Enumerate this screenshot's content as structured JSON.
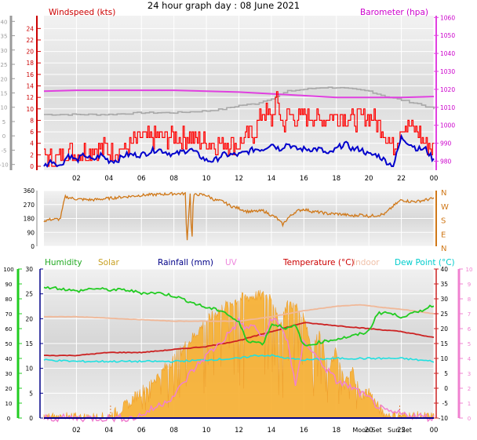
{
  "title": "24 hour graph day : 08 June 2021",
  "colors": {
    "wind_gust": "#ff0000",
    "wind_avg": "#0000cc",
    "barometer": "#e040e0",
    "baro_prev": "#a8a8a8",
    "wind_dir": "#d07818",
    "humidity": "#22cc22",
    "solar": "#f8b030",
    "rainfall": "#000088",
    "uv": "#f080d0",
    "temperature": "#cc2222",
    "indoor": "#f0b898",
    "dew_point": "#20e0e0",
    "left_axis_gray": "#9a9a9a",
    "plot_bg": "#e6e6e6",
    "grid": "#ffffff"
  },
  "chart_data": [
    {
      "type": "line",
      "name": "wind-barometer",
      "legend": [
        {
          "label": "Windspeed (kts)",
          "color": "#cc0000"
        },
        {
          "label": "Barometer (hpa)",
          "color": "#cc00cc"
        }
      ],
      "x_tick_labels": [
        "02",
        "04",
        "06",
        "08",
        "10",
        "12",
        "14",
        "16",
        "18",
        "20",
        "22",
        "00"
      ],
      "xlim": [
        0,
        24
      ],
      "wind_axis": {
        "ticks": [
          0,
          2,
          4,
          6,
          8,
          10,
          12,
          14,
          16,
          18,
          20,
          22,
          24
        ],
        "ylim": [
          0,
          25
        ]
      },
      "baro_axis": {
        "ticks": [
          980,
          990,
          1000,
          1010,
          1020,
          1030,
          1040,
          1050,
          1060
        ],
        "ylim": [
          975,
          1061
        ]
      },
      "left_gray_axis": {
        "ticks": [
          -10,
          -5,
          0,
          5,
          10,
          15,
          20,
          25,
          30,
          35,
          40
        ],
        "ylim": [
          -12,
          42
        ]
      },
      "series": [
        {
          "name": "Windspeed (kts)",
          "role": "gust",
          "unit": "kts",
          "x": [
            0.0,
            0.5,
            1.0,
            1.5,
            2.0,
            3.0,
            4.0,
            5.0,
            6.0,
            7.0,
            8.0,
            9.0,
            10.0,
            11.0,
            12.0,
            13.0,
            13.5,
            14.0,
            14.3,
            14.7,
            15.0,
            15.5,
            16.0,
            17.0,
            18.0,
            19.0,
            20.0,
            21.0,
            21.5,
            22.0,
            22.5,
            23.0,
            23.5,
            24.0
          ],
          "y": [
            2,
            1,
            2,
            3,
            2,
            3,
            3,
            3,
            5,
            5,
            5,
            5,
            4,
            4,
            4,
            6,
            10,
            8,
            12,
            7,
            9,
            8,
            9,
            8,
            9,
            8,
            9,
            6,
            3,
            7,
            7,
            6,
            4,
            3
          ]
        },
        {
          "name": "Wind average",
          "role": "average",
          "unit": "kts",
          "x": [
            0.0,
            0.5,
            1.0,
            1.5,
            2.0,
            2.5,
            3.0,
            3.5,
            4.0,
            4.5,
            5.0,
            6.0,
            7.0,
            8.0,
            9.0,
            9.5,
            10.0,
            10.5,
            11.0,
            12.0,
            13.0,
            13.5,
            14.0,
            14.5,
            15.0,
            15.5,
            16.0,
            17.0,
            17.5,
            18.0,
            18.5,
            19.0,
            19.5,
            20.0,
            20.5,
            21.0,
            21.5,
            22.0,
            22.5,
            23.0,
            23.5,
            24.0
          ],
          "y": [
            0,
            1,
            0,
            2,
            1,
            2,
            1,
            2,
            1,
            1,
            2,
            2,
            3,
            2,
            3,
            2,
            1,
            1,
            2,
            2,
            3,
            3,
            4,
            3,
            4,
            3,
            3,
            3,
            2,
            3,
            4,
            3,
            3,
            2,
            2,
            1,
            0,
            5,
            4,
            3,
            3,
            1
          ]
        },
        {
          "name": "Barometer (hpa)",
          "unit": "hpa",
          "x": [
            0,
            2,
            4,
            6,
            8,
            10,
            12,
            14,
            16,
            18,
            20,
            22,
            24
          ],
          "y": [
            1019,
            1019.5,
            1019.5,
            1019.5,
            1019.5,
            1019,
            1018.5,
            1017.5,
            1016.5,
            1015.5,
            1015.5,
            1015.5,
            1016
          ]
        },
        {
          "name": "Previous barometer",
          "role": "previous",
          "unit": "hpa",
          "x": [
            0,
            2,
            4,
            6,
            8,
            10,
            11,
            12,
            13,
            14,
            15,
            16,
            17,
            18,
            19,
            20,
            21,
            22,
            23,
            24
          ],
          "y": [
            1006,
            1006,
            1006,
            1007,
            1007,
            1008,
            1009,
            1011,
            1012,
            1015,
            1019,
            1020,
            1021,
            1021,
            1020,
            1019,
            1016,
            1014,
            1012,
            1009
          ]
        }
      ]
    },
    {
      "type": "line",
      "name": "wind-direction",
      "x_tick_labels": [
        "02",
        "04",
        "06",
        "08",
        "10",
        "12",
        "14",
        "16",
        "18",
        "20",
        "22",
        "00"
      ],
      "xlim": [
        0,
        24
      ],
      "left_axis": {
        "ticks": [
          0,
          90,
          180,
          270,
          360
        ],
        "ylim": [
          0,
          360
        ]
      },
      "right_axis_labels": [
        "N",
        "W",
        "S",
        "E",
        "N"
      ],
      "series": [
        {
          "name": "Wind direction",
          "unit": "deg",
          "x": [
            0.0,
            0.5,
            1.0,
            1.3,
            2.0,
            3.0,
            4.0,
            5.0,
            6.0,
            7.0,
            8.0,
            8.7,
            8.8,
            9.0,
            9.1,
            9.2,
            9.5,
            10.0,
            10.5,
            11.0,
            11.5,
            12.0,
            12.5,
            13.0,
            13.5,
            14.0,
            14.3,
            14.7,
            15.0,
            15.5,
            16.0,
            16.5,
            17.0,
            17.5,
            18.0,
            18.5,
            19.0,
            19.5,
            20.0,
            20.5,
            21.0,
            21.5,
            22.0,
            22.5,
            23.0,
            23.5,
            24.0
          ],
          "y": [
            165,
            175,
            175,
            320,
            305,
            300,
            310,
            320,
            330,
            335,
            340,
            340,
            15,
            345,
            5,
            330,
            335,
            330,
            300,
            290,
            260,
            245,
            225,
            225,
            230,
            200,
            185,
            140,
            180,
            225,
            240,
            225,
            220,
            210,
            210,
            205,
            195,
            205,
            195,
            200,
            210,
            260,
            300,
            290,
            290,
            300,
            310
          ]
        }
      ]
    },
    {
      "type": "line",
      "name": "humidity-solar-temperature",
      "legend": [
        {
          "label": "Humidity",
          "color": "#22aa22"
        },
        {
          "label": "Solar",
          "color": "#c8a020"
        },
        {
          "label": "Rainfall (mm)",
          "color": "#000088"
        },
        {
          "label": "UV",
          "color": "#ee88dd"
        },
        {
          "label": "Temperature (°C)",
          "color": "#cc0000"
        },
        {
          "label": "Indoor",
          "color": "#f0c0a8"
        },
        {
          "label": "Dew Point (°C)",
          "color": "#00cccc"
        }
      ],
      "x_tick_labels": [
        "02",
        "04",
        "06",
        "08",
        "10",
        "12",
        "14",
        "16",
        "18",
        "20",
        "22",
        "00"
      ],
      "xlim": [
        0,
        24
      ],
      "sun_moon_labels": [
        {
          "label": "Moon Set",
          "x": 19.9
        },
        {
          "label": "Sun Set",
          "x": 21.9
        }
      ],
      "humidity_axis": {
        "ticks": [
          0,
          10,
          20,
          30,
          40,
          50,
          60,
          70,
          80,
          90,
          100
        ],
        "ylim": [
          0,
          100
        ]
      },
      "rain_axis": {
        "ticks": [
          0,
          5,
          10,
          15,
          20,
          25,
          30
        ],
        "ylim": [
          0,
          30
        ]
      },
      "temp_axis": {
        "ticks": [
          -10,
          -5,
          0,
          5,
          10,
          15,
          20,
          25,
          30,
          35,
          40
        ],
        "ylim": [
          -10,
          40
        ]
      },
      "uv_axis": {
        "ticks": [
          0,
          1,
          2,
          3,
          4,
          5,
          6,
          7,
          8,
          9,
          10
        ],
        "ylim": [
          0,
          10
        ]
      },
      "series": [
        {
          "name": "Humidity",
          "unit": "%",
          "x": [
            0,
            1,
            2,
            3,
            4,
            5,
            6,
            7,
            8,
            9,
            10,
            11,
            12,
            12.5,
            13,
            13.5,
            14,
            14.5,
            15,
            15.5,
            16,
            17,
            18,
            19,
            20,
            20.5,
            21,
            22,
            23,
            24
          ],
          "y": [
            88,
            87,
            85,
            87,
            86,
            86,
            84,
            84,
            82,
            78,
            74,
            72,
            64,
            52,
            51,
            50,
            63,
            62,
            60,
            62,
            48,
            51,
            53,
            55,
            58,
            70,
            71,
            68,
            71,
            76
          ]
        },
        {
          "name": "Temperature (°C)",
          "unit": "°C",
          "x": [
            0,
            2,
            4,
            6,
            8,
            10,
            12,
            14,
            16,
            18,
            20,
            22,
            24
          ],
          "y": [
            11,
            11,
            12,
            12,
            13,
            14,
            16,
            19,
            22,
            21,
            20,
            19,
            17
          ]
        },
        {
          "name": "Indoor",
          "unit": "°C",
          "x": [
            0,
            2,
            4,
            6,
            8,
            10,
            12,
            14,
            16,
            18,
            19.5,
            21,
            22,
            24
          ],
          "y": [
            24,
            24,
            23.5,
            23,
            22.5,
            22.5,
            22.5,
            24,
            26,
            27.5,
            28,
            27,
            26.5,
            25
          ]
        },
        {
          "name": "Dew Point (°C)",
          "unit": "°C",
          "x": [
            0,
            2,
            4,
            6,
            8,
            10,
            12,
            13,
            14,
            15,
            16,
            18,
            20,
            22,
            24
          ],
          "y": [
            9.5,
            9,
            9,
            9,
            9,
            9.5,
            10,
            11,
            11,
            10,
            9.5,
            10,
            10,
            10,
            9
          ]
        },
        {
          "name": "Solar",
          "unit": "",
          "x": [
            0,
            3.8,
            4.5,
            5.0,
            6,
            7,
            8,
            9,
            10,
            11,
            12,
            13,
            14,
            14.5,
            15,
            15.5,
            16,
            16.5,
            17,
            17.5,
            18,
            18.5,
            19,
            19.5,
            20,
            20.5,
            21,
            24
          ],
          "y": [
            0,
            0,
            4,
            8,
            18,
            28,
            40,
            52,
            65,
            74,
            80,
            82,
            82,
            60,
            78,
            75,
            70,
            45,
            58,
            30,
            45,
            22,
            32,
            15,
            18,
            8,
            2,
            0
          ]
        },
        {
          "name": "UV",
          "unit": "",
          "x": [
            0,
            5.5,
            6,
            7,
            8,
            8.5,
            9,
            10,
            11,
            12,
            12.5,
            13,
            13.5,
            14,
            14.5,
            15,
            15.5,
            16,
            16.5,
            17,
            18,
            19,
            20,
            21,
            24
          ],
          "y": [
            0,
            0,
            0.2,
            0.8,
            1.5,
            2.2,
            3,
            4.2,
            5.2,
            6.5,
            6,
            6.2,
            5.2,
            6.8,
            6.2,
            5.2,
            2,
            5.3,
            4.5,
            3.8,
            2.5,
            2,
            1.3,
            0.4,
            0
          ]
        },
        {
          "name": "Rainfall (mm)",
          "unit": "mm",
          "x": [
            0,
            24
          ],
          "y": [
            0,
            0
          ]
        }
      ]
    }
  ]
}
